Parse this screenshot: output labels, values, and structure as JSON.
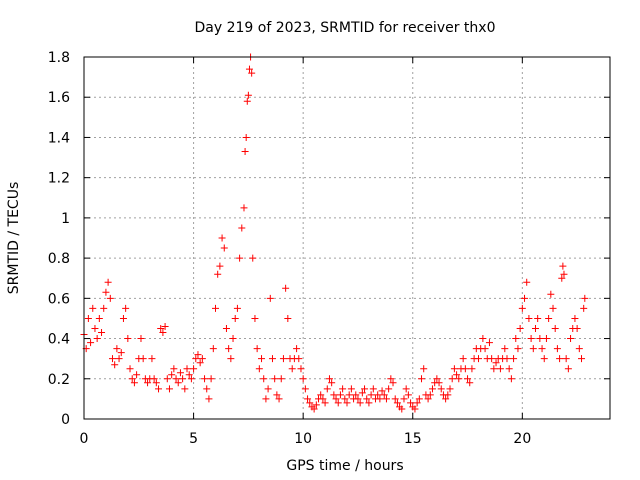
{
  "chart_data": {
    "type": "scatter",
    "title": "Day 219 of 2023, SRMTID for receiver thx0",
    "xlabel": "GPS time / hours",
    "ylabel": "SRMTID / TECUs",
    "xlim": [
      0,
      24
    ],
    "ylim": [
      0,
      1.8
    ],
    "x_tick_labels": [
      "0",
      "5",
      "10",
      "15",
      "20"
    ],
    "x_tick_values": [
      0,
      5,
      10,
      15,
      20
    ],
    "y_tick_labels": [
      "0",
      "0.2",
      "0.4",
      "0.6",
      "0.8",
      "1",
      "1.2",
      "1.4",
      "1.6",
      "1.8"
    ],
    "y_tick_values": [
      0,
      0.2,
      0.4,
      0.6,
      0.8,
      1.0,
      1.2,
      1.4,
      1.6,
      1.8
    ],
    "grid": true,
    "marker": "+",
    "color": "#ff0000",
    "series": [
      {
        "name": "SRMTID",
        "points": [
          [
            0.0,
            0.42
          ],
          [
            0.1,
            0.35
          ],
          [
            0.2,
            0.5
          ],
          [
            0.3,
            0.38
          ],
          [
            0.4,
            0.55
          ],
          [
            0.5,
            0.45
          ],
          [
            0.6,
            0.4
          ],
          [
            0.7,
            0.5
          ],
          [
            0.8,
            0.43
          ],
          [
            0.9,
            0.55
          ],
          [
            1.0,
            0.63
          ],
          [
            1.1,
            0.68
          ],
          [
            1.2,
            0.6
          ],
          [
            1.3,
            0.3
          ],
          [
            1.4,
            0.27
          ],
          [
            1.5,
            0.35
          ],
          [
            1.6,
            0.3
          ],
          [
            1.7,
            0.33
          ],
          [
            1.8,
            0.5
          ],
          [
            1.9,
            0.55
          ],
          [
            2.0,
            0.4
          ],
          [
            2.1,
            0.25
          ],
          [
            2.2,
            0.2
          ],
          [
            2.3,
            0.18
          ],
          [
            2.4,
            0.22
          ],
          [
            2.5,
            0.3
          ],
          [
            2.6,
            0.4
          ],
          [
            2.7,
            0.3
          ],
          [
            2.8,
            0.2
          ],
          [
            2.9,
            0.18
          ],
          [
            3.0,
            0.2
          ],
          [
            3.1,
            0.3
          ],
          [
            3.2,
            0.2
          ],
          [
            3.3,
            0.18
          ],
          [
            3.4,
            0.15
          ],
          [
            3.5,
            0.45
          ],
          [
            3.6,
            0.43
          ],
          [
            3.7,
            0.46
          ],
          [
            3.8,
            0.2
          ],
          [
            3.9,
            0.15
          ],
          [
            4.0,
            0.22
          ],
          [
            4.1,
            0.25
          ],
          [
            4.2,
            0.2
          ],
          [
            4.3,
            0.18
          ],
          [
            4.4,
            0.23
          ],
          [
            4.5,
            0.2
          ],
          [
            4.6,
            0.15
          ],
          [
            4.7,
            0.25
          ],
          [
            4.8,
            0.22
          ],
          [
            4.9,
            0.2
          ],
          [
            5.0,
            0.25
          ],
          [
            5.1,
            0.3
          ],
          [
            5.2,
            0.32
          ],
          [
            5.3,
            0.28
          ],
          [
            5.4,
            0.3
          ],
          [
            5.5,
            0.2
          ],
          [
            5.6,
            0.15
          ],
          [
            5.7,
            0.1
          ],
          [
            5.8,
            0.2
          ],
          [
            5.9,
            0.35
          ],
          [
            6.0,
            0.55
          ],
          [
            6.1,
            0.72
          ],
          [
            6.2,
            0.76
          ],
          [
            6.3,
            0.9
          ],
          [
            6.4,
            0.85
          ],
          [
            6.5,
            0.45
          ],
          [
            6.6,
            0.35
          ],
          [
            6.7,
            0.3
          ],
          [
            6.8,
            0.4
          ],
          [
            6.9,
            0.5
          ],
          [
            7.0,
            0.55
          ],
          [
            7.1,
            0.8
          ],
          [
            7.2,
            0.95
          ],
          [
            7.3,
            1.05
          ],
          [
            7.35,
            1.33
          ],
          [
            7.4,
            1.4
          ],
          [
            7.45,
            1.58
          ],
          [
            7.5,
            1.61
          ],
          [
            7.55,
            1.74
          ],
          [
            7.6,
            1.8
          ],
          [
            7.65,
            1.72
          ],
          [
            7.7,
            0.8
          ],
          [
            7.8,
            0.5
          ],
          [
            7.9,
            0.35
          ],
          [
            8.0,
            0.25
          ],
          [
            8.1,
            0.3
          ],
          [
            8.2,
            0.2
          ],
          [
            8.3,
            0.1
          ],
          [
            8.4,
            0.15
          ],
          [
            8.5,
            0.6
          ],
          [
            8.6,
            0.3
          ],
          [
            8.7,
            0.2
          ],
          [
            8.8,
            0.12
          ],
          [
            8.9,
            0.1
          ],
          [
            9.0,
            0.2
          ],
          [
            9.1,
            0.3
          ],
          [
            9.2,
            0.65
          ],
          [
            9.3,
            0.5
          ],
          [
            9.4,
            0.3
          ],
          [
            9.5,
            0.25
          ],
          [
            9.6,
            0.3
          ],
          [
            9.7,
            0.35
          ],
          [
            9.8,
            0.3
          ],
          [
            9.9,
            0.25
          ],
          [
            10.0,
            0.2
          ],
          [
            10.1,
            0.15
          ],
          [
            10.2,
            0.1
          ],
          [
            10.3,
            0.08
          ],
          [
            10.4,
            0.06
          ],
          [
            10.5,
            0.05
          ],
          [
            10.6,
            0.07
          ],
          [
            10.7,
            0.1
          ],
          [
            10.8,
            0.12
          ],
          [
            10.9,
            0.1
          ],
          [
            11.0,
            0.08
          ],
          [
            11.1,
            0.15
          ],
          [
            11.2,
            0.2
          ],
          [
            11.3,
            0.18
          ],
          [
            11.4,
            0.12
          ],
          [
            11.5,
            0.1
          ],
          [
            11.6,
            0.08
          ],
          [
            11.7,
            0.12
          ],
          [
            11.8,
            0.15
          ],
          [
            11.9,
            0.1
          ],
          [
            12.0,
            0.08
          ],
          [
            12.1,
            0.12
          ],
          [
            12.2,
            0.15
          ],
          [
            12.3,
            0.1
          ],
          [
            12.4,
            0.12
          ],
          [
            12.5,
            0.1
          ],
          [
            12.6,
            0.08
          ],
          [
            12.7,
            0.13
          ],
          [
            12.8,
            0.15
          ],
          [
            12.9,
            0.1
          ],
          [
            13.0,
            0.08
          ],
          [
            13.1,
            0.12
          ],
          [
            13.2,
            0.15
          ],
          [
            13.3,
            0.1
          ],
          [
            13.4,
            0.12
          ],
          [
            13.5,
            0.1
          ],
          [
            13.6,
            0.14
          ],
          [
            13.7,
            0.12
          ],
          [
            13.8,
            0.1
          ],
          [
            13.9,
            0.15
          ],
          [
            14.0,
            0.2
          ],
          [
            14.1,
            0.18
          ],
          [
            14.2,
            0.1
          ],
          [
            14.3,
            0.08
          ],
          [
            14.4,
            0.06
          ],
          [
            14.5,
            0.05
          ],
          [
            14.6,
            0.1
          ],
          [
            14.7,
            0.15
          ],
          [
            14.8,
            0.12
          ],
          [
            14.9,
            0.08
          ],
          [
            15.0,
            0.06
          ],
          [
            15.1,
            0.05
          ],
          [
            15.2,
            0.08
          ],
          [
            15.3,
            0.1
          ],
          [
            15.4,
            0.2
          ],
          [
            15.5,
            0.25
          ],
          [
            15.6,
            0.12
          ],
          [
            15.7,
            0.1
          ],
          [
            15.8,
            0.12
          ],
          [
            15.9,
            0.15
          ],
          [
            16.0,
            0.18
          ],
          [
            16.1,
            0.2
          ],
          [
            16.2,
            0.18
          ],
          [
            16.3,
            0.15
          ],
          [
            16.4,
            0.12
          ],
          [
            16.5,
            0.1
          ],
          [
            16.6,
            0.12
          ],
          [
            16.7,
            0.15
          ],
          [
            16.8,
            0.2
          ],
          [
            16.9,
            0.25
          ],
          [
            17.0,
            0.22
          ],
          [
            17.1,
            0.2
          ],
          [
            17.2,
            0.25
          ],
          [
            17.3,
            0.3
          ],
          [
            17.4,
            0.25
          ],
          [
            17.5,
            0.2
          ],
          [
            17.6,
            0.18
          ],
          [
            17.7,
            0.25
          ],
          [
            17.8,
            0.3
          ],
          [
            17.9,
            0.35
          ],
          [
            18.0,
            0.3
          ],
          [
            18.1,
            0.35
          ],
          [
            18.2,
            0.4
          ],
          [
            18.3,
            0.35
          ],
          [
            18.4,
            0.3
          ],
          [
            18.5,
            0.38
          ],
          [
            18.6,
            0.3
          ],
          [
            18.7,
            0.25
          ],
          [
            18.8,
            0.28
          ],
          [
            18.9,
            0.3
          ],
          [
            19.0,
            0.25
          ],
          [
            19.1,
            0.3
          ],
          [
            19.2,
            0.35
          ],
          [
            19.3,
            0.3
          ],
          [
            19.4,
            0.25
          ],
          [
            19.5,
            0.2
          ],
          [
            19.6,
            0.3
          ],
          [
            19.7,
            0.4
          ],
          [
            19.8,
            0.35
          ],
          [
            19.9,
            0.45
          ],
          [
            20.0,
            0.55
          ],
          [
            20.1,
            0.6
          ],
          [
            20.2,
            0.68
          ],
          [
            20.3,
            0.5
          ],
          [
            20.4,
            0.4
          ],
          [
            20.5,
            0.35
          ],
          [
            20.6,
            0.45
          ],
          [
            20.7,
            0.5
          ],
          [
            20.8,
            0.4
          ],
          [
            20.9,
            0.35
          ],
          [
            21.0,
            0.3
          ],
          [
            21.1,
            0.4
          ],
          [
            21.2,
            0.5
          ],
          [
            21.3,
            0.62
          ],
          [
            21.4,
            0.55
          ],
          [
            21.5,
            0.45
          ],
          [
            21.6,
            0.35
          ],
          [
            21.7,
            0.3
          ],
          [
            21.8,
            0.7
          ],
          [
            21.85,
            0.76
          ],
          [
            21.9,
            0.72
          ],
          [
            22.0,
            0.3
          ],
          [
            22.1,
            0.25
          ],
          [
            22.2,
            0.4
          ],
          [
            22.3,
            0.45
          ],
          [
            22.4,
            0.5
          ],
          [
            22.5,
            0.45
          ],
          [
            22.6,
            0.35
          ],
          [
            22.7,
            0.3
          ],
          [
            22.8,
            0.55
          ],
          [
            22.85,
            0.6
          ]
        ]
      }
    ]
  }
}
